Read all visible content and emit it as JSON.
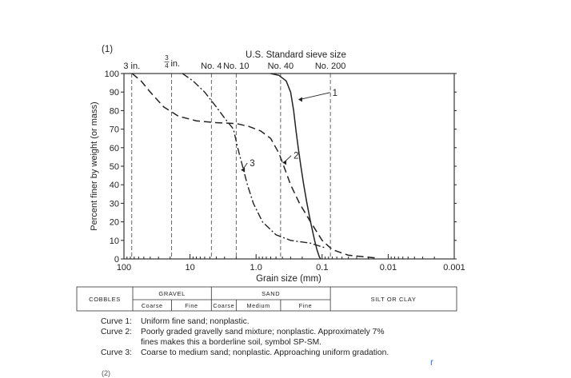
{
  "figure_label": "(1)",
  "footer_label": "(2)",
  "stray_mark": "r",
  "colors": {
    "ink": "#222222",
    "stray": "#3b7ad9"
  },
  "chart_data": {
    "type": "line",
    "title": "U.S. Standard sieve size",
    "xlabel": "Grain size (mm)",
    "ylabel": "Percent finer by weight (or mass)",
    "x_scale": "log",
    "x_reversed": true,
    "xlim": [
      100,
      0.001
    ],
    "ylim": [
      0,
      100
    ],
    "x_ticks": [
      100,
      10,
      1.0,
      0.1,
      0.01,
      0.001
    ],
    "x_tick_labels": [
      "100",
      "10",
      "1.0",
      "0.1",
      "0.01",
      "0.001"
    ],
    "y_ticks": [
      0,
      10,
      20,
      30,
      40,
      50,
      60,
      70,
      80,
      90,
      100
    ],
    "y_tick_labels": [
      "0",
      "10",
      "20",
      "30",
      "40",
      "50",
      "60",
      "70",
      "80",
      "90",
      "100"
    ],
    "sieves": [
      {
        "label": "3 in.",
        "mm": 76.2
      },
      {
        "label": "3/4 in.",
        "mm": 19.05,
        "fraction": true,
        "num": "3",
        "den": "4",
        "suffix": " in."
      },
      {
        "label": "No. 4",
        "mm": 4.75
      },
      {
        "label": "No. 10",
        "mm": 2.0
      },
      {
        "label": "No. 40",
        "mm": 0.425
      },
      {
        "label": "No. 200",
        "mm": 0.075
      }
    ],
    "series": [
      {
        "name": "1",
        "points": [
          [
            0.6,
            100
          ],
          [
            0.45,
            99
          ],
          [
            0.35,
            96
          ],
          [
            0.3,
            90
          ],
          [
            0.27,
            80
          ],
          [
            0.25,
            70
          ],
          [
            0.23,
            60
          ],
          [
            0.21,
            50
          ],
          [
            0.19,
            40
          ],
          [
            0.17,
            30
          ],
          [
            0.15,
            20
          ],
          [
            0.13,
            10
          ],
          [
            0.12,
            5
          ],
          [
            0.11,
            1
          ],
          [
            0.105,
            0
          ]
        ]
      },
      {
        "name": "2",
        "points": [
          [
            75,
            100
          ],
          [
            55,
            96
          ],
          [
            40,
            90
          ],
          [
            25,
            82
          ],
          [
            15,
            77
          ],
          [
            8,
            74.5
          ],
          [
            4,
            73.5
          ],
          [
            2,
            73
          ],
          [
            1.3,
            71.5
          ],
          [
            0.85,
            69
          ],
          [
            0.6,
            65
          ],
          [
            0.45,
            57
          ],
          [
            0.38,
            50
          ],
          [
            0.3,
            40
          ],
          [
            0.22,
            30
          ],
          [
            0.15,
            20
          ],
          [
            0.1,
            10
          ],
          [
            0.07,
            5
          ],
          [
            0.04,
            2
          ],
          [
            0.015,
            0.5
          ]
        ]
      },
      {
        "name": "3",
        "points": [
          [
            13,
            100
          ],
          [
            9,
            96
          ],
          [
            6,
            90
          ],
          [
            4,
            82
          ],
          [
            3,
            76
          ],
          [
            2.2,
            70
          ],
          [
            1.9,
            60
          ],
          [
            1.6,
            50
          ],
          [
            1.35,
            40
          ],
          [
            1.1,
            30
          ],
          [
            0.8,
            20
          ],
          [
            0.5,
            13
          ],
          [
            0.3,
            10
          ],
          [
            0.15,
            8.5
          ],
          [
            0.09,
            6
          ]
        ]
      }
    ],
    "curve_labels": [
      {
        "text": "1",
        "x": 0.07,
        "y": 88,
        "to_x": 0.23,
        "to_y": 86
      },
      {
        "text": "2",
        "x": 0.27,
        "y": 54,
        "to_x": 0.4,
        "to_y": 52
      },
      {
        "text": "3",
        "x": 1.25,
        "y": 50,
        "to_x": 1.7,
        "to_y": 48
      }
    ],
    "grid": false
  },
  "classification": {
    "groups": [
      {
        "label": "COBBLES",
        "sub": []
      },
      {
        "label": "GRAVEL",
        "sub": [
          "Coarse",
          "Fine"
        ]
      },
      {
        "label": "SAND",
        "sub": [
          "Coarse",
          "Medium",
          "Fine"
        ]
      },
      {
        "label": "SILT OR CLAY",
        "sub": []
      }
    ]
  },
  "notes": [
    {
      "label": "Curve 1:",
      "text": "Uniform fine sand; nonplastic."
    },
    {
      "label": "Curve 2:",
      "text": "Poorly graded gravelly sand mixture; nonplastic.  Approximately 7%"
    },
    {
      "label": "",
      "text": "fines makes this a borderline soil, symbol SP-SM."
    },
    {
      "label": "Curve 3:",
      "text": "Coarse to medium sand; nonplastic.  Approaching uniform gradation."
    }
  ]
}
